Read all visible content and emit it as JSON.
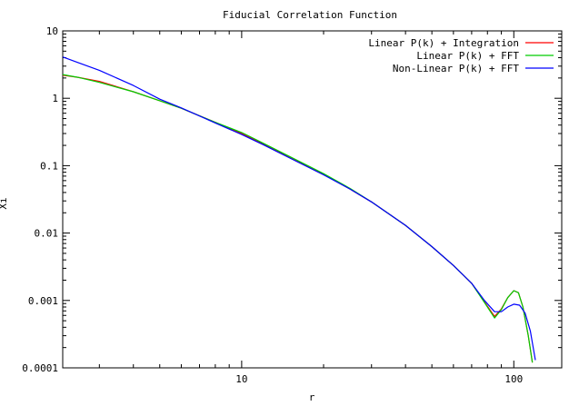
{
  "chart_data": {
    "type": "line",
    "title": "Fiducial Correlation Function",
    "xlabel": "r",
    "ylabel": "Xi",
    "xscale": "log",
    "yscale": "log",
    "xlim": [
      2.2,
      150
    ],
    "ylim": [
      0.0001,
      10
    ],
    "grid": false,
    "legend_position": "top-right",
    "x_ticks": [
      {
        "value": 10,
        "label": "10"
      },
      {
        "value": 100,
        "label": "100"
      }
    ],
    "y_ticks": [
      {
        "value": 10,
        "label": "10"
      },
      {
        "value": 1,
        "label": "1"
      },
      {
        "value": 0.1,
        "label": "0.1"
      },
      {
        "value": 0.01,
        "label": "0.01"
      },
      {
        "value": 0.001,
        "label": "0.001"
      },
      {
        "value": 0.0001,
        "label": "0.0001"
      }
    ],
    "series": [
      {
        "name": "Linear P(k) + Integration",
        "color": "#ff0000",
        "points": [
          [
            2.2,
            2.2
          ],
          [
            2.5,
            2.05
          ],
          [
            3,
            1.78
          ],
          [
            4,
            1.25
          ],
          [
            5,
            0.92
          ],
          [
            6,
            0.71
          ],
          [
            8,
            0.44
          ],
          [
            10,
            0.3
          ],
          [
            12,
            0.21
          ],
          [
            15,
            0.135
          ],
          [
            20,
            0.075
          ],
          [
            25,
            0.045
          ],
          [
            30,
            0.029
          ],
          [
            40,
            0.013
          ],
          [
            50,
            0.0063
          ],
          [
            60,
            0.0033
          ],
          [
            70,
            0.0018
          ],
          [
            78,
            0.00095
          ],
          [
            85,
            0.00058
          ],
          [
            90,
            0.00075
          ],
          [
            95,
            0.0011
          ],
          [
            100,
            0.0014
          ],
          [
            104,
            0.0013
          ],
          [
            108,
            0.0008
          ],
          [
            113,
            0.0003
          ],
          [
            117,
            0.00012
          ]
        ]
      },
      {
        "name": "Linear P(k)  + FFT",
        "color": "#00cc00",
        "points": [
          [
            2.2,
            2.25
          ],
          [
            2.5,
            2.05
          ],
          [
            3,
            1.72
          ],
          [
            4,
            1.25
          ],
          [
            5,
            0.92
          ],
          [
            6,
            0.71
          ],
          [
            8,
            0.44
          ],
          [
            10,
            0.31
          ],
          [
            12,
            0.215
          ],
          [
            15,
            0.137
          ],
          [
            20,
            0.076
          ],
          [
            25,
            0.046
          ],
          [
            30,
            0.029
          ],
          [
            40,
            0.013
          ],
          [
            50,
            0.0063
          ],
          [
            60,
            0.0033
          ],
          [
            70,
            0.0018
          ],
          [
            78,
            0.00093
          ],
          [
            85,
            0.00055
          ],
          [
            90,
            0.00073
          ],
          [
            95,
            0.0011
          ],
          [
            100,
            0.0014
          ],
          [
            104,
            0.0013
          ],
          [
            108,
            0.0008
          ],
          [
            113,
            0.0003
          ],
          [
            117,
            0.00012
          ]
        ]
      },
      {
        "name": "Non-Linear P(k) + FFT",
        "color": "#0000ff",
        "points": [
          [
            2.2,
            4.1
          ],
          [
            2.5,
            3.4
          ],
          [
            3,
            2.6
          ],
          [
            4,
            1.55
          ],
          [
            5,
            0.97
          ],
          [
            6,
            0.72
          ],
          [
            8,
            0.43
          ],
          [
            10,
            0.29
          ],
          [
            12,
            0.205
          ],
          [
            15,
            0.13
          ],
          [
            20,
            0.073
          ],
          [
            25,
            0.045
          ],
          [
            30,
            0.029
          ],
          [
            40,
            0.013
          ],
          [
            50,
            0.0063
          ],
          [
            60,
            0.0033
          ],
          [
            70,
            0.0018
          ],
          [
            78,
            0.001
          ],
          [
            85,
            0.00068
          ],
          [
            90,
            0.00068
          ],
          [
            95,
            0.0008
          ],
          [
            100,
            0.00088
          ],
          [
            105,
            0.00085
          ],
          [
            110,
            0.00065
          ],
          [
            115,
            0.00035
          ],
          [
            120,
            0.00013
          ]
        ]
      }
    ]
  }
}
